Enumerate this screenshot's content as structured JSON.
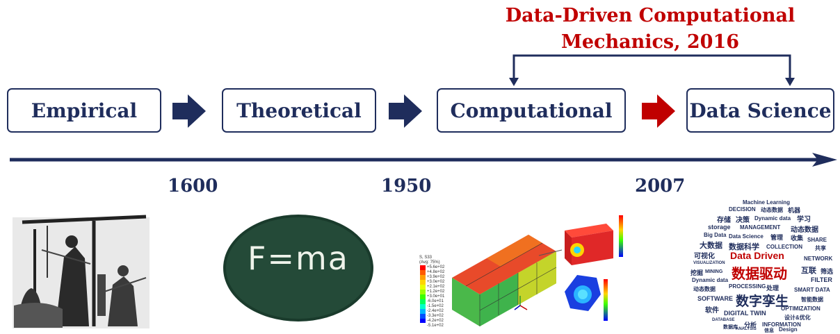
{
  "title": {
    "line1": "Data-Driven Computational",
    "line2": "Mechanics, 2016"
  },
  "stages": [
    {
      "label": "Empirical"
    },
    {
      "label": "Theoretical"
    },
    {
      "label": "Computational"
    },
    {
      "label": "Data Science"
    }
  ],
  "years": [
    "1600",
    "1950",
    "2007"
  ],
  "chalkboard": {
    "formula": "F=ma"
  },
  "fe_plot": {
    "legend_title": "S, S33\n(Avg: 75%)",
    "legend_values": [
      "+5.6e+02",
      "+4.8e+02",
      "+3.9e+02",
      "+3.0e+02",
      "+2.1e+02",
      "+1.2e+02",
      "+3.0e+01",
      "-6.0e+01",
      "-1.5e+02",
      "-2.4e+02",
      "-3.3e+02",
      "-4.2e+02",
      "-5.1e+02"
    ]
  },
  "word_cloud": {
    "words": [
      "Machine Learning",
      "DECISION",
      "动态数据",
      "机器",
      "存储",
      "决策",
      "Dynamic data",
      "学习",
      "storage",
      "MANAGEMENT",
      "动态数据",
      "Big Data",
      "Data Science",
      "管理",
      "收集",
      "SHARE",
      "大数据",
      "数据科学",
      "COLLECTION",
      "共享",
      "可视化",
      "Data Driven",
      "NETWORK",
      "VISUALIZATION",
      "数据驱动",
      "互联",
      "筛选",
      "挖掘",
      "MINING",
      "Dynamic data",
      "FILTER",
      "动态数据",
      "PROCESSING",
      "处理",
      "SMART DATA",
      "SOFTWARE",
      "数字孪生",
      "智能数据",
      "软件",
      "DIGITAL TWIN",
      "OPTIMIZATION",
      "DATABASE",
      "设计&优化",
      "数据库",
      "分析",
      "INFORMATION",
      "ANALYSIS",
      "信息",
      "Design"
    ]
  },
  "colors": {
    "navy": "#1f2d5c",
    "red": "#c00000"
  }
}
